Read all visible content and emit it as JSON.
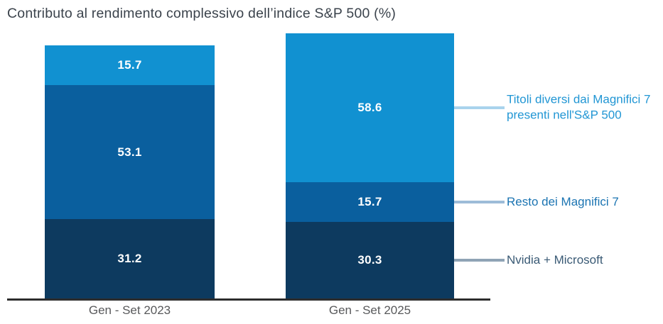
{
  "title": "Contributo al rendimento complessivo dell’indice S&P 500 (%)",
  "chart_data": {
    "type": "bar",
    "stacked": true,
    "title": "Contributo al rendimento complessivo dell’indice S&P 500 (%)",
    "categories": [
      "Gen - Set 2023",
      "Gen - Set 2025"
    ],
    "series": [
      {
        "name": "Nvidia + Microsoft",
        "lines": [
          "Nvidia + Microsoft"
        ],
        "values": [
          31.2,
          30.3
        ],
        "color": "#0d3a5f",
        "label_color": "#3a5a75",
        "leader_color": "#8fa3b5"
      },
      {
        "name": "Resto dei Magnifici 7",
        "lines": [
          "Resto dei Magnifici 7"
        ],
        "values": [
          53.1,
          15.7
        ],
        "color": "#0a5f9e",
        "label_color": "#1b74b2",
        "leader_color": "#9dbcd8"
      },
      {
        "name": "Titoli diversi dai Magnifici 7 presenti nell'S&P 500",
        "lines": [
          "Titoli diversi dai Magnifici 7",
          "presenti nell'S&P 500"
        ],
        "values": [
          15.7,
          58.6
        ],
        "color": "#1191d1",
        "label_color": "#2196d4",
        "leader_color": "#a9d3ed"
      }
    ],
    "value_labels": [
      [
        "31.2",
        "30.3"
      ],
      [
        "53.1",
        "15.7"
      ],
      [
        "15.7",
        "58.6"
      ]
    ],
    "ylim": [
      0,
      105
    ],
    "grid": false,
    "legend_position": "right",
    "axis_color": "#2d2d2d",
    "xlabel": "",
    "ylabel": ""
  }
}
